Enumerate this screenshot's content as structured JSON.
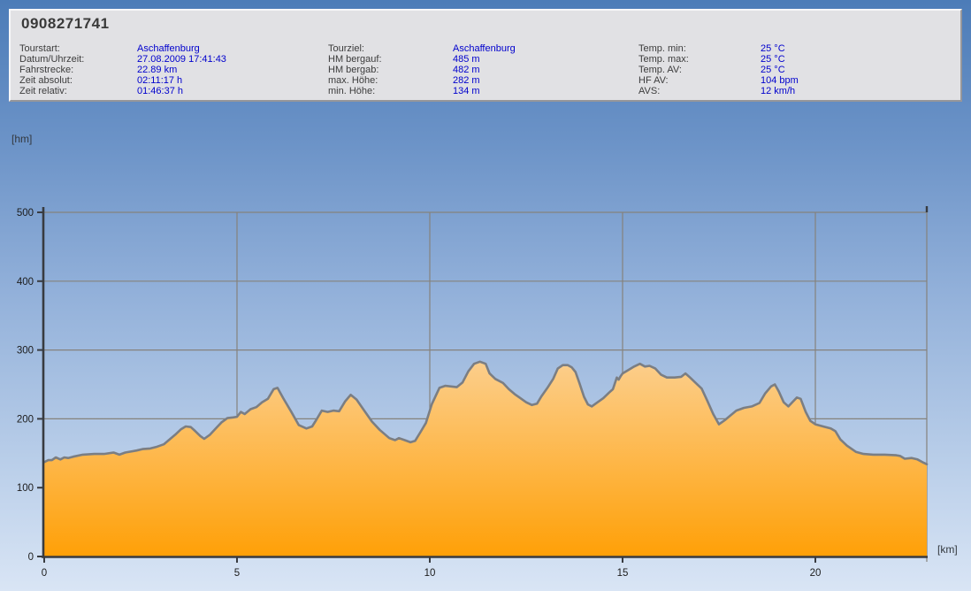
{
  "panel": {
    "title": "0908271741",
    "columns": [
      {
        "rows": [
          {
            "label": "Tourstart:",
            "value": "Aschaffenburg"
          },
          {
            "label": "Datum/Uhrzeit:",
            "value": "27.08.2009 17:41:43"
          },
          {
            "label": "Fahrstrecke:",
            "value": "22.89 km"
          },
          {
            "label": "Zeit absolut:",
            "value": "02:11:17 h"
          },
          {
            "label": "Zeit relativ:",
            "value": "01:46:37 h"
          }
        ]
      },
      {
        "rows": [
          {
            "label": "Tourziel:",
            "value": "Aschaffenburg"
          },
          {
            "label": "HM bergauf:",
            "value": "485 m"
          },
          {
            "label": "HM bergab:",
            "value": "482 m"
          },
          {
            "label": "max. Höhe:",
            "value": "282 m"
          },
          {
            "label": "min. Höhe:",
            "value": "134 m"
          }
        ]
      },
      {
        "rows": [
          {
            "label": "Temp. min:",
            "value": "25 °C"
          },
          {
            "label": "Temp. max:",
            "value": "25 °C"
          },
          {
            "label": "Temp. AV:",
            "value": "25 °C"
          },
          {
            "label": "HF AV:",
            "value": "104 bpm"
          },
          {
            "label": "AVS:",
            "value": "12 km/h"
          }
        ]
      }
    ]
  },
  "chart_data": {
    "type": "area",
    "title": "",
    "xlabel": "[km]",
    "ylabel": "[hm]",
    "xlim": [
      0,
      22.89
    ],
    "ylim": [
      0,
      500
    ],
    "x_ticks": [
      0,
      5,
      10,
      15,
      20
    ],
    "y_ticks": [
      0,
      100,
      200,
      300,
      400,
      500
    ],
    "grid": true,
    "legend": "none",
    "series": [
      {
        "name": "elevation-profile",
        "points": [
          [
            0,
            137
          ],
          [
            0.1,
            140
          ],
          [
            0.2,
            140
          ],
          [
            0.3,
            144
          ],
          [
            0.42,
            141
          ],
          [
            0.52,
            144
          ],
          [
            0.62,
            143
          ],
          [
            0.75,
            145
          ],
          [
            1.0,
            148
          ],
          [
            1.3,
            149
          ],
          [
            1.55,
            149
          ],
          [
            1.8,
            151
          ],
          [
            1.95,
            148
          ],
          [
            2.1,
            151
          ],
          [
            2.4,
            154
          ],
          [
            2.55,
            156
          ],
          [
            2.75,
            157
          ],
          [
            2.9,
            159
          ],
          [
            3.1,
            163
          ],
          [
            3.25,
            170
          ],
          [
            3.4,
            177
          ],
          [
            3.55,
            185
          ],
          [
            3.67,
            189
          ],
          [
            3.8,
            188
          ],
          [
            3.92,
            182
          ],
          [
            4.05,
            175
          ],
          [
            4.15,
            171
          ],
          [
            4.3,
            177
          ],
          [
            4.45,
            186
          ],
          [
            4.6,
            195
          ],
          [
            4.75,
            201
          ],
          [
            4.9,
            202
          ],
          [
            5.0,
            203
          ],
          [
            5.1,
            210
          ],
          [
            5.2,
            207
          ],
          [
            5.35,
            214
          ],
          [
            5.5,
            217
          ],
          [
            5.65,
            224
          ],
          [
            5.8,
            229
          ],
          [
            5.95,
            243
          ],
          [
            6.05,
            245
          ],
          [
            6.2,
            230
          ],
          [
            6.4,
            211
          ],
          [
            6.6,
            191
          ],
          [
            6.8,
            186
          ],
          [
            6.95,
            189
          ],
          [
            7.05,
            198
          ],
          [
            7.2,
            212
          ],
          [
            7.35,
            210
          ],
          [
            7.5,
            212
          ],
          [
            7.65,
            211
          ],
          [
            7.8,
            225
          ],
          [
            7.95,
            235
          ],
          [
            8.1,
            228
          ],
          [
            8.3,
            212
          ],
          [
            8.5,
            196
          ],
          [
            8.7,
            184
          ],
          [
            8.95,
            172
          ],
          [
            9.1,
            169
          ],
          [
            9.2,
            172
          ],
          [
            9.35,
            169
          ],
          [
            9.5,
            166
          ],
          [
            9.62,
            168
          ],
          [
            9.75,
            180
          ],
          [
            9.9,
            194
          ],
          [
            10.05,
            221
          ],
          [
            10.25,
            245
          ],
          [
            10.4,
            248
          ],
          [
            10.55,
            247
          ],
          [
            10.7,
            246
          ],
          [
            10.85,
            253
          ],
          [
            11.0,
            269
          ],
          [
            11.15,
            280
          ],
          [
            11.3,
            283
          ],
          [
            11.45,
            280
          ],
          [
            11.55,
            266
          ],
          [
            11.7,
            258
          ],
          [
            11.9,
            252
          ],
          [
            12.05,
            243
          ],
          [
            12.2,
            236
          ],
          [
            12.35,
            230
          ],
          [
            12.5,
            224
          ],
          [
            12.65,
            220
          ],
          [
            12.78,
            222
          ],
          [
            12.9,
            233
          ],
          [
            13.05,
            245
          ],
          [
            13.2,
            258
          ],
          [
            13.32,
            273
          ],
          [
            13.45,
            278
          ],
          [
            13.58,
            278
          ],
          [
            13.68,
            275
          ],
          [
            13.78,
            268
          ],
          [
            13.88,
            252
          ],
          [
            14.0,
            232
          ],
          [
            14.1,
            221
          ],
          [
            14.2,
            218
          ],
          [
            14.35,
            224
          ],
          [
            14.5,
            230
          ],
          [
            14.65,
            238
          ],
          [
            14.75,
            243
          ],
          [
            14.85,
            260
          ],
          [
            14.9,
            257
          ],
          [
            14.95,
            262
          ],
          [
            15.0,
            266
          ],
          [
            15.15,
            271
          ],
          [
            15.3,
            276
          ],
          [
            15.45,
            280
          ],
          [
            15.58,
            276
          ],
          [
            15.7,
            277
          ],
          [
            15.85,
            273
          ],
          [
            16.0,
            264
          ],
          [
            16.15,
            260
          ],
          [
            16.35,
            260
          ],
          [
            16.52,
            261
          ],
          [
            16.63,
            266
          ],
          [
            16.75,
            260
          ],
          [
            16.9,
            252
          ],
          [
            17.05,
            244
          ],
          [
            17.2,
            226
          ],
          [
            17.35,
            207
          ],
          [
            17.5,
            192
          ],
          [
            17.65,
            198
          ],
          [
            17.8,
            205
          ],
          [
            17.95,
            212
          ],
          [
            18.15,
            216
          ],
          [
            18.35,
            218
          ],
          [
            18.55,
            223
          ],
          [
            18.7,
            237
          ],
          [
            18.85,
            247
          ],
          [
            18.95,
            250
          ],
          [
            19.05,
            240
          ],
          [
            19.18,
            224
          ],
          [
            19.3,
            218
          ],
          [
            19.42,
            225
          ],
          [
            19.52,
            231
          ],
          [
            19.62,
            229
          ],
          [
            19.75,
            210
          ],
          [
            19.87,
            197
          ],
          [
            20.0,
            192
          ],
          [
            20.2,
            189
          ],
          [
            20.4,
            186
          ],
          [
            20.52,
            182
          ],
          [
            20.65,
            170
          ],
          [
            20.82,
            161
          ],
          [
            21.05,
            152
          ],
          [
            21.25,
            149
          ],
          [
            21.5,
            148
          ],
          [
            21.8,
            148
          ],
          [
            22.1,
            147
          ],
          [
            22.2,
            146
          ],
          [
            22.32,
            142
          ],
          [
            22.5,
            143
          ],
          [
            22.65,
            141
          ],
          [
            22.78,
            137
          ],
          [
            22.89,
            134
          ]
        ]
      }
    ],
    "colors": {
      "area_top": "#fccf8e",
      "area_bottom": "#ffa007",
      "line": "#7b7e83",
      "grid": "#85827c",
      "axis": "#383b40",
      "tick_label": "#1c1c1c",
      "value_text": "#0000cd",
      "panel_bg": "#e1e1e4",
      "bg_top": "#4c7cb8",
      "bg_bottom": "#d9e5f5"
    }
  }
}
